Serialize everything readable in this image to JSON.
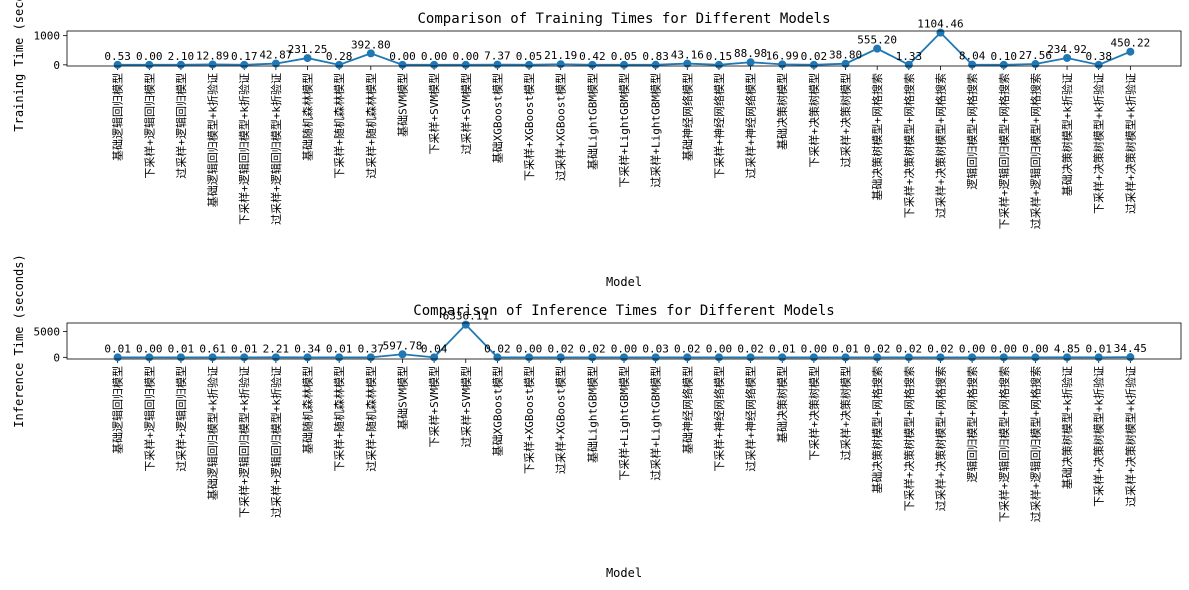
{
  "chart_data": [
    {
      "type": "line",
      "title": "Comparison of Training Times for Different Models",
      "xlabel": "Model",
      "ylabel": "Training Time (seconds)",
      "ylim": [
        -40,
        1160
      ],
      "yticks": [
        0,
        1000
      ],
      "color": "#1f77b4",
      "categories": [
        "基础逻辑回归模型",
        "下采样+逻辑回归模型",
        "过采样+逻辑回归模型",
        "基础逻辑回归模型+k折验证",
        "下采样+逻辑回归模型+k折验证",
        "过采样+逻辑回归模型+k折验证",
        "基础随机森林模型",
        "下采样+随机森林模型",
        "过采样+随机森林模型",
        "基础SVM模型",
        "下采样+SVM模型",
        "过采样+SVM模型",
        "基础XGBoost模型",
        "下采样+XGBoost模型",
        "过采样+XGBoost模型",
        "基础LightGBM模型",
        "下采样+LightGBM模型",
        "过采样+LightGBM模型",
        "基础神经网络模型",
        "下采样+神经网络模型",
        "过采样+神经网络模型",
        "基础决策树模型",
        "下采样+决策树模型",
        "过采样+决策树模型",
        "基础决策树模型+网格搜索",
        "下采样+决策树模型+网格搜索",
        "过采样+决策树模型+网格搜索",
        "逻辑回归模型+网格搜索",
        "下采样+逻辑回归模型+网格搜索",
        "过采样+逻辑回归模型+网格搜索",
        "基础决策树模型+k折验证",
        "下采样+决策树模型+k折验证",
        "过采样+决策树模型+k折验证"
      ],
      "values": [
        0.53,
        0.0,
        2.1,
        12.89,
        0.17,
        42.87,
        231.25,
        0.28,
        392.8,
        0.0,
        0.0,
        0.0,
        7.37,
        0.05,
        21.19,
        0.42,
        0.05,
        0.83,
        43.16,
        0.15,
        88.98,
        16.99,
        0.02,
        38.8,
        555.2,
        1.33,
        1104.46,
        8.04,
        0.1,
        27.56,
        234.92,
        0.38,
        450.22
      ],
      "labels": [
        "0.53",
        "0.00",
        "2.10",
        "12.89",
        "0.17",
        "42.87",
        "231.25",
        "0.28",
        "392.80",
        "0.00",
        "0.00",
        "0.00",
        "7.37",
        "0.05",
        "21.19",
        "0.42",
        "0.05",
        "0.83",
        "43.16",
        "0.15",
        "88.98",
        "16.99",
        "0.02",
        "38.80",
        "555.20",
        "1.33",
        "1104.46",
        "8.04",
        "0.10",
        "27.56",
        "234.92",
        "0.38",
        "450.22"
      ]
    },
    {
      "type": "line",
      "title": "Comparison of Inference Times for Different Models",
      "xlabel": "Model",
      "ylabel": "Inference Time (seconds)",
      "ylim": [
        -320,
        6650
      ],
      "yticks": [
        0,
        5000
      ],
      "color": "#1f77b4",
      "categories": [
        "基础逻辑回归模型",
        "下采样+逻辑回归模型",
        "过采样+逻辑回归模型",
        "基础逻辑回归模型+k折验证",
        "下采样+逻辑回归模型+k折验证",
        "过采样+逻辑回归模型+k折验证",
        "基础随机森林模型",
        "下采样+随机森林模型",
        "过采样+随机森林模型",
        "基础SVM模型",
        "下采样+SVM模型",
        "过采样+SVM模型",
        "基础XGBoost模型",
        "下采样+XGBoost模型",
        "过采样+XGBoost模型",
        "基础LightGBM模型",
        "下采样+LightGBM模型",
        "过采样+LightGBM模型",
        "基础神经网络模型",
        "下采样+神经网络模型",
        "过采样+神经网络模型",
        "基础决策树模型",
        "下采样+决策树模型",
        "过采样+决策树模型",
        "基础决策树模型+网格搜索",
        "下采样+决策树模型+网格搜索",
        "过采样+决策树模型+网格搜索",
        "逻辑回归模型+网格搜索",
        "下采样+逻辑回归模型+网格搜索",
        "过采样+逻辑回归模型+网格搜索",
        "基础决策树模型+k折验证",
        "下采样+决策树模型+k折验证",
        "过采样+决策树模型+k折验证"
      ],
      "values": [
        0.01,
        0.0,
        0.01,
        0.61,
        0.01,
        2.21,
        0.34,
        0.01,
        0.37,
        597.78,
        0.04,
        6336.11,
        0.02,
        0.0,
        0.02,
        0.02,
        0.0,
        0.03,
        0.02,
        0.0,
        0.02,
        0.01,
        0.0,
        0.01,
        0.02,
        0.02,
        0.02,
        0.0,
        0.0,
        0.0,
        4.85,
        0.01,
        34.45
      ],
      "labels": [
        "0.01",
        "0.00",
        "0.01",
        "0.61",
        "0.01",
        "2.21",
        "0.34",
        "0.01",
        "0.37",
        "597.78",
        "0.04",
        "6336.11",
        "0.02",
        "0.00",
        "0.02",
        "0.02",
        "0.00",
        "0.03",
        "0.02",
        "0.00",
        "0.02",
        "0.01",
        "0.00",
        "0.01",
        "0.02",
        "0.02",
        "0.02",
        "0.00",
        "0.00",
        "0.00",
        "4.85",
        "0.01",
        "34.45"
      ]
    }
  ]
}
